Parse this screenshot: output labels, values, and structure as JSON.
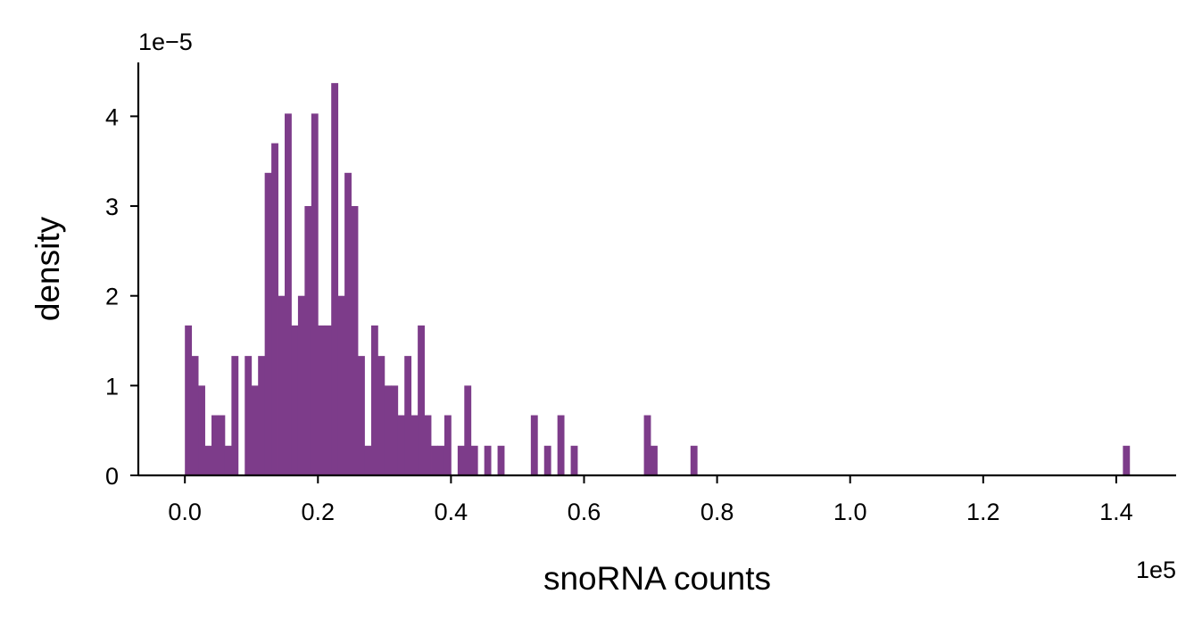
{
  "chart_data": {
    "type": "bar",
    "subtype": "histogram",
    "xlabel": "snoRNA counts",
    "ylabel": "density",
    "x_offset_text": "1e5",
    "y_offset_text": "1e−5",
    "xlim": [
      -0.07,
      1.49
    ],
    "ylim": [
      0,
      4.6
    ],
    "x_unit_scale": 100000,
    "y_unit_scale": 1e-05,
    "x_ticks": [
      0.0,
      0.2,
      0.4,
      0.6,
      0.8,
      1.0,
      1.2,
      1.4
    ],
    "x_tick_labels": [
      "0.0",
      "0.2",
      "0.4",
      "0.6",
      "0.8",
      "1.0",
      "1.2",
      "1.4"
    ],
    "y_ticks": [
      0,
      1,
      2,
      3,
      4
    ],
    "y_tick_labels": [
      "0",
      "1",
      "2",
      "3",
      "4"
    ],
    "bar_color": "#7d3c8a",
    "grid": false,
    "legend": "none",
    "bin_start": 0.0,
    "bin_width": 0.01,
    "values": [
      1.67,
      1.33,
      1.0,
      0.33,
      0.67,
      0.67,
      0.33,
      1.33,
      0,
      1.33,
      1.0,
      1.33,
      3.37,
      3.7,
      2.0,
      4.03,
      1.67,
      2.0,
      3.0,
      4.03,
      1.67,
      1.67,
      4.37,
      2.0,
      3.37,
      3.0,
      1.33,
      0.33,
      1.67,
      1.33,
      1.0,
      1.0,
      0.67,
      1.33,
      0.67,
      1.67,
      0.67,
      0.33,
      0.33,
      0.67,
      0,
      0.33,
      1.0,
      0.33,
      0,
      0.33,
      0,
      0.33,
      0,
      0,
      0,
      0,
      0.67,
      0,
      0.33,
      0,
      0.67,
      0,
      0.33,
      0,
      0,
      0,
      0,
      0,
      0,
      0,
      0,
      0,
      0,
      0.67,
      0.33,
      0,
      0,
      0,
      0,
      0,
      0.33,
      0,
      0,
      0,
      0,
      0,
      0,
      0,
      0,
      0,
      0,
      0,
      0,
      0,
      0,
      0,
      0,
      0,
      0,
      0,
      0,
      0,
      0,
      0,
      0,
      0,
      0,
      0,
      0,
      0,
      0,
      0,
      0,
      0,
      0,
      0,
      0,
      0,
      0,
      0,
      0,
      0,
      0,
      0,
      0,
      0,
      0,
      0,
      0,
      0,
      0,
      0,
      0,
      0,
      0,
      0,
      0,
      0,
      0,
      0,
      0,
      0,
      0,
      0,
      0,
      0.33
    ]
  }
}
